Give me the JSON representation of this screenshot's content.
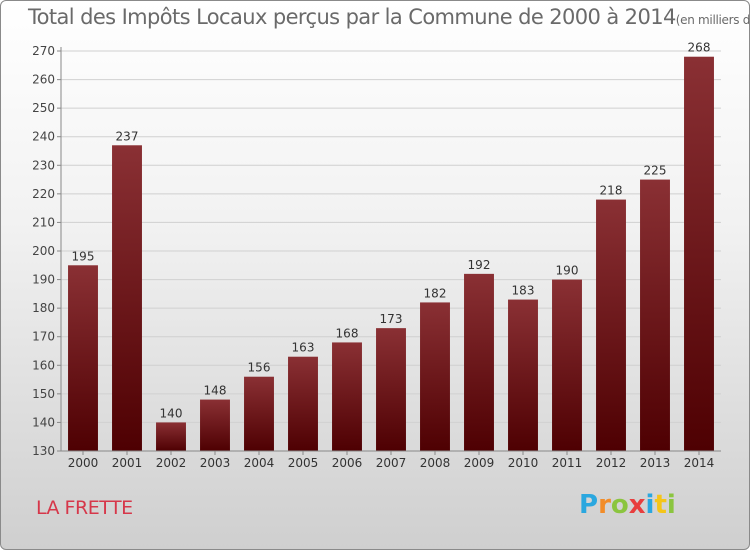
{
  "header": {
    "title": "Total des Impôts Locaux perçus par la Commune de 2000 à 2014",
    "unit": "(en milliers d'€)"
  },
  "commune": "LA FRETTE",
  "logo": {
    "letters": [
      "P",
      "r",
      "o",
      "x",
      "i",
      "t",
      "i"
    ],
    "colors": [
      "#2aa7df",
      "#f28c28",
      "#8bc53f",
      "#e83e3e",
      "#2aa7df",
      "#f5c518",
      "#8bc53f"
    ]
  },
  "colors": {
    "bar_top": "#8a3034",
    "bar_bottom": "#4e0002",
    "commune": "#d6374a"
  },
  "chart_data": {
    "type": "bar",
    "title": "Total des Impôts Locaux perçus par la Commune de 2000 à 2014",
    "xlabel": "",
    "ylabel": "",
    "categories": [
      "2000",
      "2001",
      "2002",
      "2003",
      "2004",
      "2005",
      "2006",
      "2007",
      "2008",
      "2009",
      "2010",
      "2011",
      "2012",
      "2013",
      "2014"
    ],
    "values": [
      195,
      237,
      140,
      148,
      156,
      163,
      168,
      173,
      182,
      192,
      183,
      190,
      218,
      225,
      268
    ],
    "ylim": [
      130,
      270
    ],
    "yticks": [
      130,
      140,
      150,
      160,
      170,
      180,
      190,
      200,
      210,
      220,
      230,
      240,
      250,
      260,
      270
    ],
    "grid": true,
    "data_labels": true
  }
}
